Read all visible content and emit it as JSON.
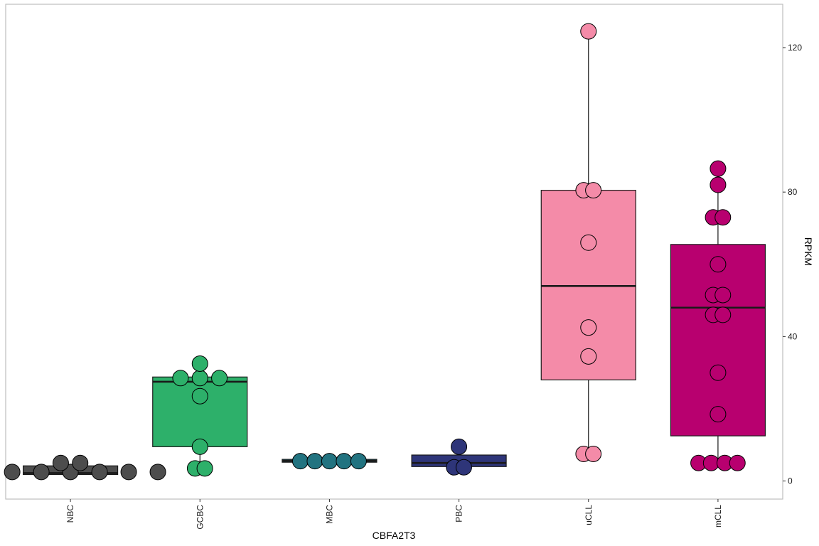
{
  "chart_data": {
    "type": "box",
    "xlabel": "CBFA2T3",
    "ylabel": "RPKM",
    "ylim": [
      -5,
      132
    ],
    "y_ticks": [
      0,
      40,
      80,
      120
    ],
    "y_tick_labels": [
      "0",
      "40",
      "80",
      "120"
    ],
    "y_axis_side": "right",
    "grid": false,
    "categories": [
      "NBC",
      "GCBC",
      "MBC",
      "PBC",
      "uCLL",
      "mCLL"
    ],
    "colors": [
      "#4d4d4d",
      "#2db06a",
      "#227380",
      "#2e3579",
      "#f48ba8",
      "#b8006f"
    ],
    "boxes": [
      {
        "q1": 1.8,
        "median": 2.2,
        "q3": 4.2,
        "whisker_low": 1.8,
        "whisker_high": 4.2
      },
      {
        "q1": 9.5,
        "median": 27.5,
        "q3": 28.8,
        "whisker_low": 3.5,
        "whisker_high": 32.5
      },
      {
        "q1": 5.2,
        "median": 5.6,
        "q3": 6.0,
        "whisker_low": 5.2,
        "whisker_high": 6.0
      },
      {
        "q1": 4.0,
        "median": 5.0,
        "q3": 7.2,
        "whisker_low": 3.8,
        "whisker_high": 9.5
      },
      {
        "q1": 28.0,
        "median": 54.0,
        "q3": 80.5,
        "whisker_low": 7.5,
        "whisker_high": 124.5
      },
      {
        "q1": 12.5,
        "median": 48.0,
        "q3": 65.5,
        "whisker_low": 5.0,
        "whisker_high": 86.5
      }
    ],
    "points": [
      [
        [
          2.5,
          -0.6
        ],
        [
          2.5,
          -0.3
        ],
        [
          2.5,
          0.0
        ],
        [
          2.5,
          0.3
        ],
        [
          2.5,
          0.6
        ],
        [
          2.5,
          0.9
        ],
        [
          5.0,
          -0.1
        ],
        [
          5.0,
          0.1
        ]
      ],
      [
        [
          3.5,
          -0.05
        ],
        [
          3.5,
          0.05
        ],
        [
          9.5,
          0.0
        ],
        [
          23.5,
          0.0
        ],
        [
          28.5,
          -0.2
        ],
        [
          28.5,
          0.0
        ],
        [
          28.5,
          0.2
        ],
        [
          32.5,
          0.0
        ]
      ],
      [
        [
          5.5,
          -0.3
        ],
        [
          5.5,
          -0.15
        ],
        [
          5.5,
          0.0
        ],
        [
          5.5,
          0.15
        ],
        [
          5.5,
          0.3
        ]
      ],
      [
        [
          3.8,
          -0.05
        ],
        [
          3.8,
          0.05
        ],
        [
          9.5,
          0.0
        ]
      ],
      [
        [
          7.5,
          -0.05
        ],
        [
          7.5,
          0.05
        ],
        [
          34.5,
          0.0
        ],
        [
          42.5,
          0.0
        ],
        [
          66.0,
          0.0
        ],
        [
          80.5,
          -0.05
        ],
        [
          80.5,
          0.05
        ],
        [
          124.5,
          0.0
        ]
      ],
      [
        [
          5.0,
          -0.2
        ],
        [
          5.0,
          -0.07
        ],
        [
          5.0,
          0.07
        ],
        [
          5.0,
          0.2
        ],
        [
          18.5,
          0.0
        ],
        [
          30.0,
          0.0
        ],
        [
          46.0,
          -0.05
        ],
        [
          46.0,
          0.05
        ],
        [
          51.5,
          -0.05
        ],
        [
          51.5,
          0.05
        ],
        [
          60.0,
          0.0
        ],
        [
          73.0,
          -0.05
        ],
        [
          73.0,
          0.05
        ],
        [
          82.0,
          0.0
        ],
        [
          86.5,
          0.0
        ]
      ]
    ]
  }
}
